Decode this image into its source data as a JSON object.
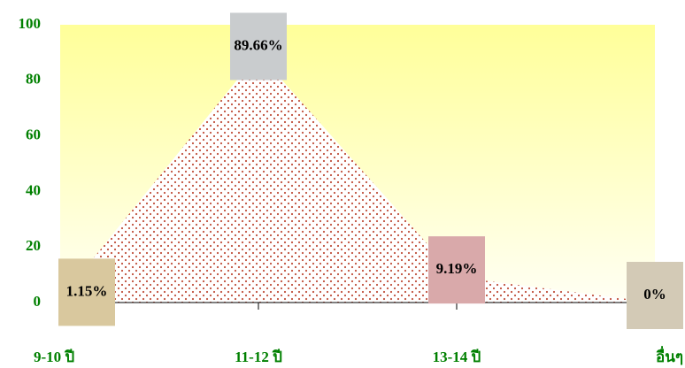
{
  "chart_data": {
    "type": "area",
    "categories": [
      "9-10 ปี",
      "11-12 ปี",
      "13-14 ปี",
      "อื่นๆ"
    ],
    "values": [
      1.15,
      89.66,
      9.19,
      0
    ],
    "value_labels": [
      "1.15%",
      "89.66%",
      "9.19%",
      "0%"
    ],
    "label_colors": [
      "#d9c89e",
      "#c9ccce",
      "#d9a9aa",
      "#d3cab6"
    ],
    "color": "#c0503c",
    "ylim": [
      0,
      100
    ],
    "yticks": [
      0,
      20,
      40,
      60,
      80,
      100
    ],
    "grid": false
  }
}
